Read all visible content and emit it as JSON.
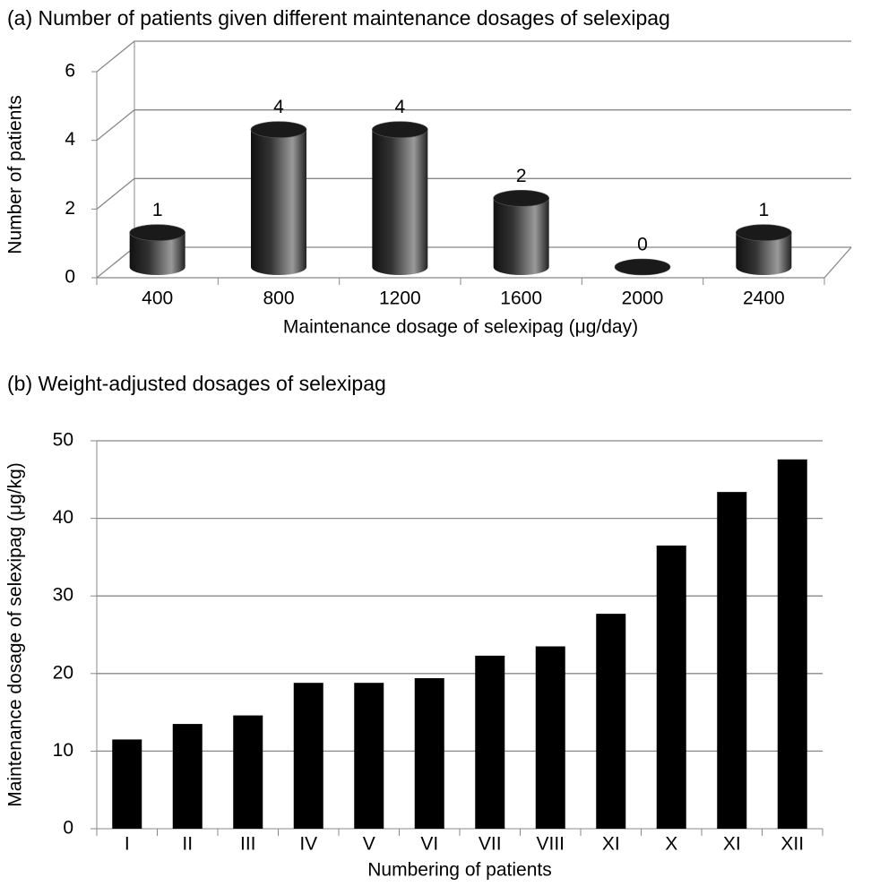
{
  "chart_data": [
    {
      "type": "bar3d",
      "title": "(a) Number of patients given different maintenance dosages of selexipag",
      "y_label": "Number of patients",
      "x_label": "Maintenance dosage of selexipag (μg/day)",
      "categories": [
        "400",
        "800",
        "1200",
        "1600",
        "2000",
        "2400"
      ],
      "values": [
        1,
        4,
        4,
        2,
        0,
        1
      ],
      "ylim": [
        0,
        6
      ],
      "yticks": [
        0,
        2,
        4,
        6
      ],
      "grid": true,
      "color": "#1a1a1a",
      "data_labels": true
    },
    {
      "type": "bar",
      "title": "(b) Weight-adjusted dosages of selexipag",
      "y_label": "Maintenance dosage of selexipag (μg/kg)",
      "x_label": "Numbering of patients",
      "categories": [
        "I",
        "II",
        "III",
        "IV",
        "V",
        "VI",
        "VII",
        "VIII",
        "XI",
        "X",
        "XI",
        "XII"
      ],
      "values": [
        11.5,
        13.5,
        14.6,
        18.8,
        18.8,
        19.4,
        22.3,
        23.5,
        27.7,
        36.5,
        43.4,
        47.6
      ],
      "ylim": [
        0,
        50
      ],
      "yticks": [
        0,
        10,
        20,
        30,
        40,
        50
      ],
      "grid": true,
      "color": "#000000"
    }
  ]
}
